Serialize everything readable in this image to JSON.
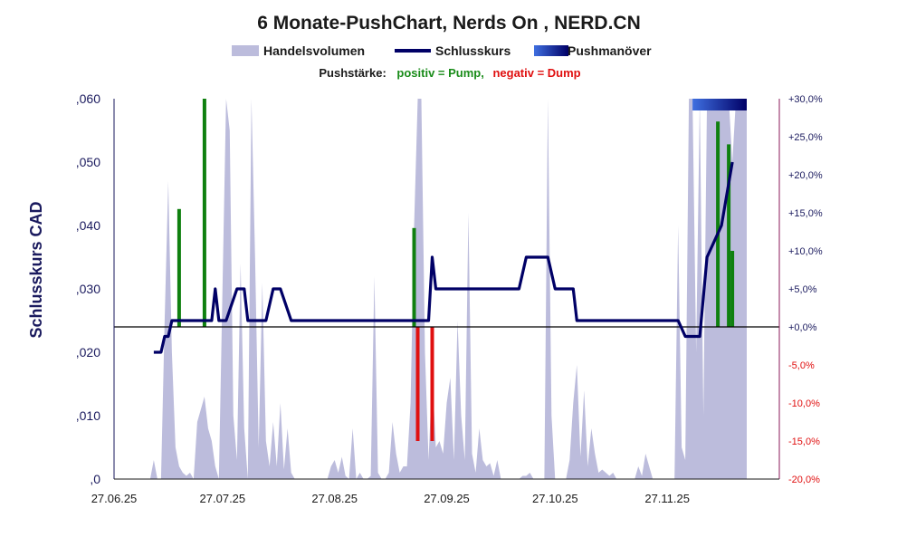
{
  "chart_data": {
    "type": "line",
    "title": "6 Monate-PushChart, Nerds On , NERD.CN",
    "legend": {
      "placement": "top-center",
      "items": [
        {
          "label": "Handelsvolumen",
          "color": "#bcbcdc"
        },
        {
          "label": "Schlusskurs",
          "color": "#000066"
        },
        {
          "label": "Pushmanöver",
          "color": "#3f6fe0"
        }
      ]
    },
    "push_note": {
      "prefix": "Pushstärke:",
      "positive": "positiv = Pump,",
      "negative": "negativ = Dump",
      "positive_color": "#1a8c1a",
      "negative_color": "#e01010"
    },
    "ylabel": "Schlusskurs CAD",
    "y_left": {
      "min": 0,
      "max": 0.06,
      "ticks": [
        0,
        0.01,
        0.02,
        0.03,
        0.04,
        0.05,
        0.06
      ],
      "tick_labels": [
        ",0",
        ",010",
        ",020",
        ",030",
        ",040",
        ",050",
        ",060"
      ]
    },
    "y_right": {
      "min": -20,
      "max": 30,
      "ticks": [
        -20,
        -15,
        -10,
        -5,
        0,
        5,
        10,
        15,
        20,
        25,
        30
      ],
      "tick_labels": [
        "-20,0%",
        "-15,0%",
        "-10,0%",
        "-5,0%",
        "+0,0%",
        "+5,0%",
        "+10,0%",
        "+15,0%",
        "+20,0%",
        "+25,0%",
        "+30,0%"
      ],
      "positive_color": "#1a1a5e",
      "negative_color": "#e01010"
    },
    "x_axis": {
      "start": "2025-06-27",
      "end": "2025-12-28",
      "tick_dates": [
        "2025-06-27",
        "2025-07-27",
        "2025-08-27",
        "2025-09-27",
        "2025-10-27",
        "2025-11-27"
      ],
      "tick_labels": [
        "27.06.25",
        "27.07.25",
        "27.08.25",
        "27.09.25",
        "27.10.25",
        "27.11.25"
      ]
    },
    "zero_line_value": 0,
    "volume_series": {
      "name": "Handelsvolumen",
      "color": "#bcbcdc",
      "price_scale_values": [
        [
          "2025-06-27",
          0
        ],
        [
          "2025-07-07",
          0
        ],
        [
          "2025-07-08",
          0.003
        ],
        [
          "2025-07-09",
          0
        ],
        [
          "2025-07-10",
          0
        ],
        [
          "2025-07-11",
          0.025
        ],
        [
          "2025-07-12",
          0.047
        ],
        [
          "2025-07-13",
          0.02
        ],
        [
          "2025-07-14",
          0.005
        ],
        [
          "2025-07-15",
          0.002
        ],
        [
          "2025-07-16",
          0.001
        ],
        [
          "2025-07-17",
          0.0005
        ],
        [
          "2025-07-18",
          0.001
        ],
        [
          "2025-07-19",
          0
        ],
        [
          "2025-07-20",
          0.009
        ],
        [
          "2025-07-21",
          0.011
        ],
        [
          "2025-07-22",
          0.013
        ],
        [
          "2025-07-23",
          0.008
        ],
        [
          "2025-07-24",
          0.006
        ],
        [
          "2025-07-25",
          0.002
        ],
        [
          "2025-07-26",
          0
        ],
        [
          "2025-07-27",
          0.03
        ],
        [
          "2025-07-28",
          0.06
        ],
        [
          "2025-07-29",
          0.055
        ],
        [
          "2025-07-30",
          0.01
        ],
        [
          "2025-07-31",
          0.003
        ],
        [
          "2025-08-01",
          0.034
        ],
        [
          "2025-08-02",
          0.008
        ],
        [
          "2025-08-03",
          0
        ],
        [
          "2025-08-04",
          0.06
        ],
        [
          "2025-08-05",
          0.035
        ],
        [
          "2025-08-06",
          0.005
        ],
        [
          "2025-08-07",
          0.031
        ],
        [
          "2025-08-08",
          0.006
        ],
        [
          "2025-08-09",
          0.002
        ],
        [
          "2025-08-10",
          0.009
        ],
        [
          "2025-08-11",
          0.002
        ],
        [
          "2025-08-12",
          0.012
        ],
        [
          "2025-08-13",
          0.0015
        ],
        [
          "2025-08-14",
          0.008
        ],
        [
          "2025-08-15",
          0.001
        ],
        [
          "2025-08-16",
          0
        ],
        [
          "2025-08-25",
          0
        ],
        [
          "2025-08-26",
          0.002
        ],
        [
          "2025-08-27",
          0.003
        ],
        [
          "2025-08-28",
          0.001
        ],
        [
          "2025-08-29",
          0.0035
        ],
        [
          "2025-08-30",
          0.0005
        ],
        [
          "2025-08-31",
          0
        ],
        [
          "2025-09-01",
          0.008
        ],
        [
          "2025-09-02",
          0
        ],
        [
          "2025-09-03",
          0.001
        ],
        [
          "2025-09-04",
          0
        ],
        [
          "2025-09-05",
          0
        ],
        [
          "2025-09-06",
          0.0005
        ],
        [
          "2025-09-07",
          0.032
        ],
        [
          "2025-09-08",
          0.001
        ],
        [
          "2025-09-09",
          0
        ],
        [
          "2025-09-10",
          0
        ],
        [
          "2025-09-11",
          0.001
        ],
        [
          "2025-09-12",
          0.009
        ],
        [
          "2025-09-13",
          0.004
        ],
        [
          "2025-09-14",
          0.001
        ],
        [
          "2025-09-15",
          0.002
        ],
        [
          "2025-09-16",
          0.002
        ],
        [
          "2025-09-17",
          0.012
        ],
        [
          "2025-09-18",
          0.04
        ],
        [
          "2025-09-19",
          0.06
        ],
        [
          "2025-09-20",
          0.06
        ],
        [
          "2025-09-21",
          0.02
        ],
        [
          "2025-09-22",
          0.003
        ],
        [
          "2025-09-23",
          0.017
        ],
        [
          "2025-09-24",
          0.005
        ],
        [
          "2025-09-25",
          0.006
        ],
        [
          "2025-09-26",
          0.004
        ],
        [
          "2025-09-27",
          0.012
        ],
        [
          "2025-09-28",
          0.016
        ],
        [
          "2025-09-29",
          0.003
        ],
        [
          "2025-09-30",
          0.025
        ],
        [
          "2025-10-01",
          0.01
        ],
        [
          "2025-10-02",
          0.003
        ],
        [
          "2025-10-03",
          0.042
        ],
        [
          "2025-10-04",
          0.004
        ],
        [
          "2025-10-05",
          0.001
        ],
        [
          "2025-10-06",
          0.008
        ],
        [
          "2025-10-07",
          0.003
        ],
        [
          "2025-10-08",
          0.002
        ],
        [
          "2025-10-09",
          0.0025
        ],
        [
          "2025-10-10",
          0.0005
        ],
        [
          "2025-10-11",
          0.003
        ],
        [
          "2025-10-12",
          0
        ],
        [
          "2025-10-17",
          0
        ],
        [
          "2025-10-18",
          0.0005
        ],
        [
          "2025-10-19",
          0.0005
        ],
        [
          "2025-10-20",
          0.001
        ],
        [
          "2025-10-21",
          0
        ],
        [
          "2025-10-24",
          0
        ],
        [
          "2025-10-25",
          0.06
        ],
        [
          "2025-10-26",
          0.01
        ],
        [
          "2025-10-27",
          0
        ],
        [
          "2025-10-30",
          0
        ],
        [
          "2025-10-31",
          0.003
        ],
        [
          "2025-11-01",
          0.012
        ],
        [
          "2025-11-02",
          0.018
        ],
        [
          "2025-11-03",
          0.0035
        ],
        [
          "2025-11-04",
          0.014
        ],
        [
          "2025-11-05",
          0.002
        ],
        [
          "2025-11-06",
          0.008
        ],
        [
          "2025-11-07",
          0.004
        ],
        [
          "2025-11-08",
          0.001
        ],
        [
          "2025-11-09",
          0.0015
        ],
        [
          "2025-11-10",
          0.001
        ],
        [
          "2025-11-11",
          0.0005
        ],
        [
          "2025-11-12",
          0.001
        ],
        [
          "2025-11-13",
          0
        ],
        [
          "2025-11-18",
          0
        ],
        [
          "2025-11-19",
          0.002
        ],
        [
          "2025-11-20",
          0.0005
        ],
        [
          "2025-11-21",
          0.004
        ],
        [
          "2025-11-22",
          0.002
        ],
        [
          "2025-11-23",
          0
        ],
        [
          "2025-11-29",
          0
        ],
        [
          "2025-11-30",
          0.04
        ],
        [
          "2025-12-01",
          0.005
        ],
        [
          "2025-12-02",
          0.003
        ],
        [
          "2025-12-03",
          0.06
        ],
        [
          "2025-12-04",
          0.06
        ],
        [
          "2025-12-05",
          0.02
        ],
        [
          "2025-12-06",
          0.06
        ],
        [
          "2025-12-07",
          0.01
        ],
        [
          "2025-12-08",
          0.06
        ],
        [
          "2025-12-09",
          0.06
        ],
        [
          "2025-12-10",
          0.06
        ],
        [
          "2025-12-11",
          0.06
        ],
        [
          "2025-12-12",
          0.06
        ],
        [
          "2025-12-13",
          0.06
        ],
        [
          "2025-12-14",
          0.06
        ],
        [
          "2025-12-15",
          0.05
        ],
        [
          "2025-12-16",
          0.06
        ],
        [
          "2025-12-17",
          0.06
        ],
        [
          "2025-12-18",
          0.06
        ],
        [
          "2025-12-19",
          0.06
        ]
      ]
    },
    "price_series": {
      "name": "Schlusskurs",
      "color": "#000066",
      "points": [
        [
          "2025-07-08",
          0.02
        ],
        [
          "2025-07-10",
          0.02
        ],
        [
          "2025-07-11",
          0.0225
        ],
        [
          "2025-07-12",
          0.0225
        ],
        [
          "2025-07-13",
          0.025
        ],
        [
          "2025-07-24",
          0.025
        ],
        [
          "2025-07-25",
          0.03
        ],
        [
          "2025-07-26",
          0.025
        ],
        [
          "2025-07-28",
          0.025
        ],
        [
          "2025-07-31",
          0.03
        ],
        [
          "2025-08-02",
          0.03
        ],
        [
          "2025-08-03",
          0.025
        ],
        [
          "2025-08-08",
          0.025
        ],
        [
          "2025-08-10",
          0.03
        ],
        [
          "2025-08-12",
          0.03
        ],
        [
          "2025-08-15",
          0.025
        ],
        [
          "2025-09-22",
          0.025
        ],
        [
          "2025-09-23",
          0.035
        ],
        [
          "2025-09-24",
          0.03
        ],
        [
          "2025-10-17",
          0.03
        ],
        [
          "2025-10-19",
          0.035
        ],
        [
          "2025-10-25",
          0.035
        ],
        [
          "2025-10-27",
          0.03
        ],
        [
          "2025-11-01",
          0.03
        ],
        [
          "2025-11-02",
          0.025
        ],
        [
          "2025-11-30",
          0.025
        ],
        [
          "2025-12-02",
          0.0225
        ],
        [
          "2025-12-06",
          0.0225
        ],
        [
          "2025-12-08",
          0.035
        ],
        [
          "2025-12-12",
          0.04
        ],
        [
          "2025-12-15",
          0.05
        ]
      ]
    },
    "push_bars": {
      "positive_color": "#0f800f",
      "negative_color": "#e01010",
      "bars": [
        [
          "2025-07-15",
          15.5
        ],
        [
          "2025-07-22",
          30.0
        ],
        [
          "2025-09-18",
          13.0
        ],
        [
          "2025-09-19",
          -15.0
        ],
        [
          "2025-09-23",
          -15.0
        ],
        [
          "2025-12-11",
          27.0
        ],
        [
          "2025-12-14",
          24.0
        ],
        [
          "2025-12-15",
          10.0
        ]
      ]
    },
    "push_band": {
      "start": "2025-12-04",
      "end": "2025-12-19",
      "color_from": "#3f6fe0",
      "color_to": "#000066"
    }
  }
}
